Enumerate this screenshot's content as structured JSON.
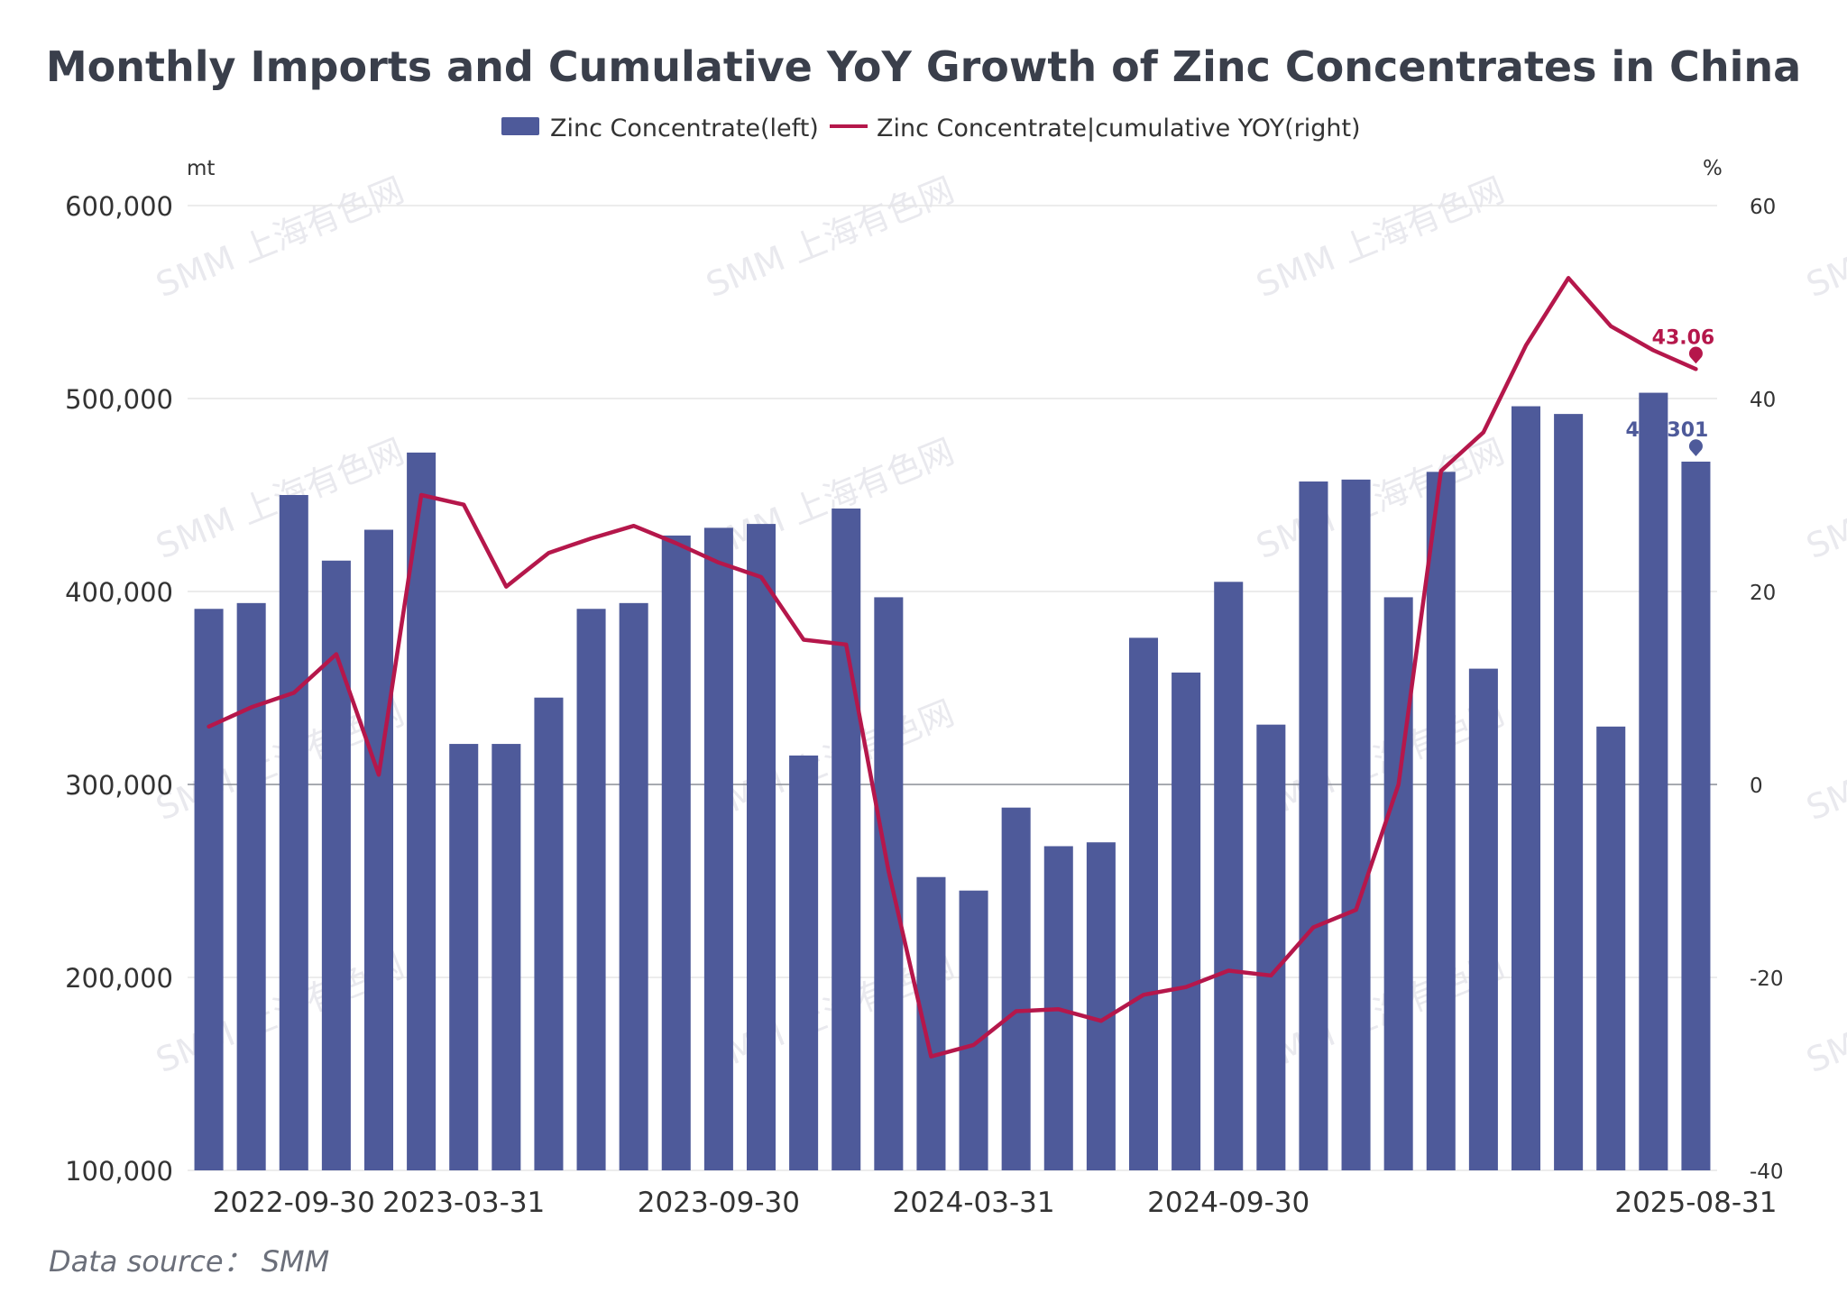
{
  "title": "Monthly Imports and Cumulative YoY Growth of Zinc Concentrates in China",
  "legend": {
    "bar_label": "Zinc Concentrate(left)",
    "line_label": "Zinc Concentrate|cumulative YOY(right)"
  },
  "source": "Data source： SMM",
  "watermark": "SMM 上海有色网",
  "colors": {
    "bar": "#4e5a9a",
    "line": "#b5174b",
    "grid": "#e6e6e6",
    "zero": "#8a8d96"
  },
  "chart_data": {
    "type": "bar",
    "left_axis": {
      "unit": "mt",
      "min": 100000,
      "max": 600000,
      "ticks": [
        "100,000",
        "200,000",
        "300,000",
        "400,000",
        "500,000",
        "600,000"
      ],
      "tick_values": [
        100000,
        200000,
        300000,
        400000,
        500000,
        600000
      ]
    },
    "right_axis": {
      "unit": "%",
      "min": -40,
      "max": 60,
      "ticks": [
        "-40",
        "-20",
        "0",
        "20",
        "40",
        "60"
      ],
      "tick_values": [
        -40,
        -20,
        0,
        20,
        40,
        60
      ]
    },
    "x_tick_labels": [
      {
        "index": 2,
        "label": "2022-09-30"
      },
      {
        "index": 6,
        "label": "2023-03-31"
      },
      {
        "index": 12,
        "label": "2023-09-30"
      },
      {
        "index": 18,
        "label": "2024-03-31"
      },
      {
        "index": 24,
        "label": "2024-09-30"
      },
      {
        "index": 35,
        "label": "2025-08-31"
      }
    ],
    "series": [
      {
        "name": "Zinc Concentrate(left)",
        "kind": "bar",
        "axis": "left",
        "values": [
          391000,
          394000,
          450000,
          416000,
          432000,
          472000,
          321000,
          321000,
          345000,
          391000,
          394000,
          429000,
          433000,
          435000,
          315000,
          443000,
          397000,
          252000,
          245000,
          288000,
          268000,
          270000,
          376000,
          358000,
          405000,
          331000,
          457000,
          458000,
          397000,
          462000,
          360000,
          496000,
          492000,
          330000,
          503000,
          467301
        ],
        "last_label": "467301"
      },
      {
        "name": "Zinc Concentrate|cumulative YOY(right)",
        "kind": "line",
        "axis": "right",
        "values": [
          6.0,
          8.0,
          9.5,
          13.5,
          1.0,
          30.0,
          29.0,
          20.5,
          24.0,
          25.5,
          26.8,
          25.0,
          23.0,
          21.5,
          15.0,
          14.5,
          -9.0,
          -28.2,
          -27.0,
          -23.5,
          -23.3,
          -24.5,
          -21.8,
          -21.0,
          -19.3,
          -19.8,
          -14.8,
          -13.0,
          0.0,
          32.5,
          36.5,
          45.5,
          52.5,
          47.5,
          45.0,
          43.06
        ],
        "last_label": "43.06"
      }
    ]
  }
}
